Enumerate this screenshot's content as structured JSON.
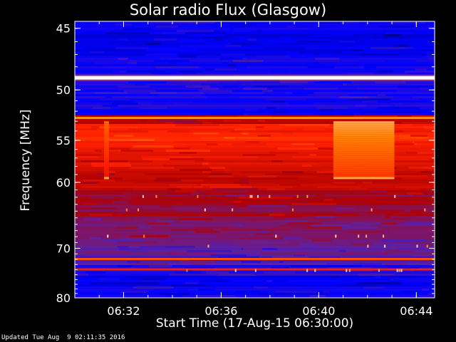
{
  "header": {
    "title": "Solar radio Flux (Glasgow)"
  },
  "footer": {
    "updated": "Updated Tue Aug  9 02:11:35 2016"
  },
  "chart_data": {
    "type": "heatmap",
    "title": "Solar radio Flux (Glasgow)",
    "xlabel": "Start Time (17-Aug-15 06:30:00)",
    "ylabel": "Frequency [MHz]",
    "x_ticks": [
      "06:32",
      "06:36",
      "06:40",
      "06:44"
    ],
    "x_tick_minutes": [
      2,
      6,
      10,
      14
    ],
    "xlim_minutes": [
      0,
      14.75
    ],
    "y_ticks": [
      45,
      50,
      55,
      60,
      70,
      80
    ],
    "ylim_mhz": [
      44.5,
      80
    ],
    "y_scale": "reciprocal",
    "colormap": [
      "#000060",
      "#0000ff",
      "#6020a0",
      "#b00000",
      "#ff2000",
      "#ff8000",
      "#ffffff"
    ],
    "grid": false,
    "legend": "none",
    "features": [
      {
        "kind": "band",
        "mhz": 48.9,
        "intensity": 1.0
      },
      {
        "kind": "band",
        "mhz": 52.7,
        "intensity": 0.85
      },
      {
        "kind": "band",
        "mhz": 72.0,
        "intensity": 0.75
      },
      {
        "kind": "band",
        "mhz": 74.0,
        "intensity": 0.65
      },
      {
        "kind": "burst",
        "minute_start": 10.6,
        "minute_end": 13.1,
        "mhz_start": 53.0,
        "mhz_end": 59.5,
        "intensity": 0.9
      },
      {
        "kind": "burst",
        "minute_start": 1.2,
        "minute_end": 1.4,
        "mhz_start": 53.0,
        "mhz_end": 59.5,
        "intensity": 0.8
      }
    ]
  }
}
